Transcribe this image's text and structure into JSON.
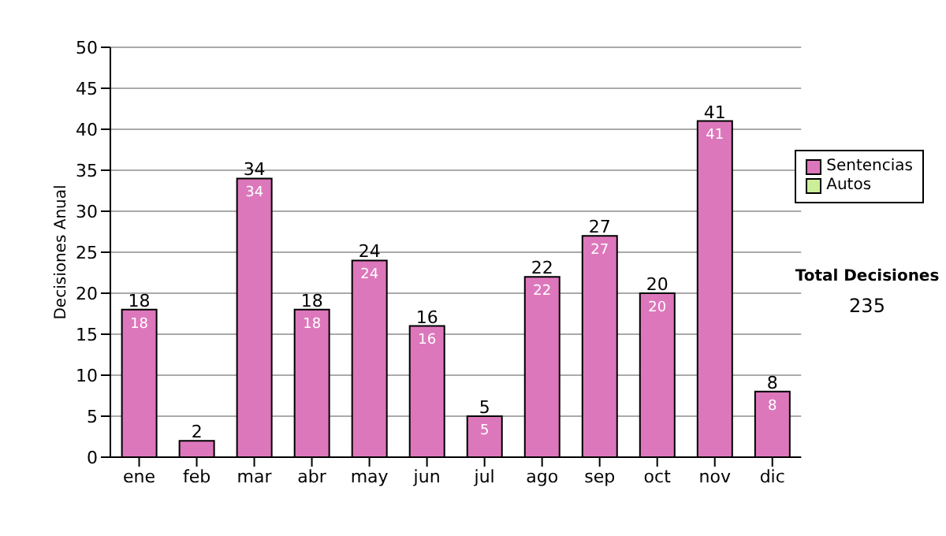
{
  "chart_data": {
    "type": "bar",
    "ylabel": "Decisiones Anual",
    "categories": [
      "ene",
      "feb",
      "mar",
      "abr",
      "may",
      "jun",
      "jul",
      "ago",
      "sep",
      "oct",
      "nov",
      "dic"
    ],
    "series": [
      {
        "name": "Sentencias",
        "color": "#dd77bb",
        "values": [
          18,
          2,
          34,
          18,
          24,
          16,
          5,
          22,
          27,
          20,
          41,
          8
        ],
        "value_labels": [
          "18",
          null,
          "34",
          "18",
          "24",
          "16",
          "5",
          "22",
          "27",
          "20",
          "41",
          "8"
        ]
      },
      {
        "name": "Autos",
        "color": "#ccee99",
        "values": [
          null,
          null,
          null,
          null,
          null,
          null,
          null,
          null,
          null,
          null,
          null,
          null
        ]
      }
    ],
    "stacked": true,
    "totals": [
      "18",
      "2",
      "34",
      "18",
      "24",
      "16",
      "5",
      "22",
      "27",
      "20",
      "41",
      "8"
    ],
    "ylim": [
      0,
      50
    ],
    "yticks": [
      0,
      5,
      10,
      15,
      20,
      25,
      30,
      35,
      40,
      45,
      50
    ],
    "grid": "y",
    "legend": "right",
    "annotations": [
      "Total Decisiones",
      "235"
    ]
  }
}
